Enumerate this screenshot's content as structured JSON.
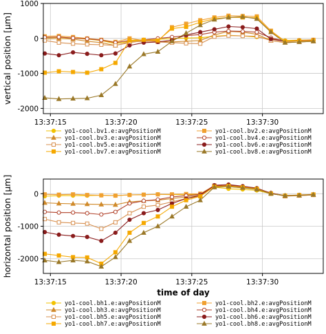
{
  "chart_data": [
    {
      "type": "line",
      "title": "",
      "xlabel": "",
      "ylabel": "vertical position [µm]",
      "x_tick_labels": [
        "13:37:15",
        "13:37:20",
        "13:37:25",
        "13:37:30"
      ],
      "x_tick_values": [
        15,
        20,
        25,
        30
      ],
      "xlim": [
        14.5,
        34.3
      ],
      "ylim": [
        -2150,
        1000
      ],
      "y_ticks": [
        1000,
        0,
        -1000,
        -2000
      ],
      "grid": true,
      "legend_position": "bottom",
      "x": [
        14.6,
        15.6,
        16.6,
        17.6,
        18.6,
        19.6,
        20.6,
        21.6,
        22.6,
        23.6,
        24.6,
        25.6,
        26.6,
        27.6,
        28.6,
        29.6,
        30.6,
        31.6,
        32.6,
        33.6
      ],
      "series": [
        {
          "name": "yo1-cool.bv1.e:avgPositionM",
          "color": "#f2c200",
          "marker": "circle-filled",
          "values": [
            20,
            30,
            10,
            -20,
            -60,
            -150,
            -80,
            -60,
            -30,
            0,
            10,
            20,
            60,
            90,
            70,
            40,
            -20,
            -60,
            -50,
            -40
          ]
        },
        {
          "name": "yo1-cool.bv2.e:avgPositionM",
          "color": "#f0a030",
          "marker": "square-filled",
          "values": [
            60,
            70,
            40,
            0,
            -40,
            -100,
            0,
            -60,
            -80,
            320,
            420,
            520,
            600,
            650,
            640,
            630,
            220,
            -80,
            -60,
            -40
          ]
        },
        {
          "name": "yo1-cool.bv3.e:avgPositionM",
          "color": "#d08a2a",
          "marker": "triangle-filled",
          "values": [
            -20,
            0,
            -20,
            -80,
            -120,
            -200,
            -100,
            -80,
            -80,
            -100,
            -80,
            -60,
            100,
            200,
            180,
            120,
            -60,
            -120,
            -100,
            -80
          ]
        },
        {
          "name": "yo1-cool.bv4.e:avgPositionM",
          "color": "#b04028",
          "marker": "circle-open",
          "values": [
            30,
            40,
            10,
            -10,
            -50,
            -120,
            -60,
            -40,
            0,
            40,
            80,
            110,
            180,
            210,
            200,
            180,
            20,
            -80,
            -60,
            -50
          ]
        },
        {
          "name": "yo1-cool.bv5.e:avgPositionM",
          "color": "#d89050",
          "marker": "square-open",
          "values": [
            -60,
            -120,
            -150,
            -170,
            -180,
            -200,
            -120,
            -60,
            -100,
            -120,
            -140,
            -150,
            50,
            80,
            70,
            60,
            -60,
            -110,
            -100,
            -80
          ]
        },
        {
          "name": "yo1-cool.bv6.e:avgPositionM",
          "color": "#8a1c1c",
          "marker": "circle-filled",
          "values": [
            -430,
            -480,
            -400,
            -440,
            -480,
            -430,
            -200,
            -120,
            -100,
            -50,
            100,
            180,
            260,
            340,
            320,
            280,
            -20,
            -80,
            -70,
            -60
          ]
        },
        {
          "name": "yo1-cool.bv7.e:avgPositionM",
          "color": "#f5a800",
          "marker": "square-filled",
          "values": [
            -980,
            -940,
            -960,
            -980,
            -880,
            -700,
            -60,
            -40,
            -60,
            280,
            330,
            460,
            560,
            600,
            600,
            590,
            190,
            -80,
            -70,
            -60
          ]
        },
        {
          "name": "yo1-cool.bv8.e:avgPositionM",
          "color": "#9a7828",
          "marker": "triangle-filled",
          "values": [
            -1700,
            -1730,
            -1720,
            -1710,
            -1620,
            -1300,
            -800,
            -450,
            -380,
            -80,
            150,
            380,
            540,
            600,
            620,
            560,
            180,
            -120,
            -100,
            -80
          ]
        }
      ]
    },
    {
      "type": "line",
      "title": "",
      "xlabel": "time of day",
      "ylabel": "horizontal position [µm]",
      "x_tick_labels": [
        "13:37:15",
        "13:37:20",
        "13:37:25",
        "13:37:30"
      ],
      "x_tick_values": [
        15,
        20,
        25,
        30
      ],
      "xlim": [
        14.5,
        34.3
      ],
      "ylim": [
        -2450,
        450
      ],
      "y_ticks": [
        0,
        -1000,
        -2000
      ],
      "grid": true,
      "legend_position": "bottom",
      "x": [
        14.6,
        15.6,
        16.6,
        17.6,
        18.6,
        19.6,
        20.6,
        21.6,
        22.6,
        23.6,
        24.6,
        25.6,
        26.6,
        27.6,
        28.6,
        29.6,
        30.6,
        31.6,
        32.6,
        33.6
      ],
      "series": [
        {
          "name": "yo1-cool.bh1.e:avgPositionM",
          "color": "#f2c200",
          "marker": "circle-filled",
          "values": [
            -80,
            -60,
            -60,
            -60,
            -50,
            -60,
            -40,
            -30,
            -20,
            -30,
            -30,
            -20,
            200,
            150,
            130,
            100,
            0,
            -60,
            -50,
            -30
          ]
        },
        {
          "name": "yo1-cool.bh2.e:avgPositionM",
          "color": "#f0a030",
          "marker": "square-filled",
          "values": [
            -20,
            -30,
            -20,
            -40,
            -50,
            -60,
            -40,
            -30,
            -20,
            -20,
            -10,
            0,
            250,
            220,
            180,
            150,
            0,
            -60,
            -40,
            -20
          ]
        },
        {
          "name": "yo1-cool.bh3.e:avgPositionM",
          "color": "#d08a2a",
          "marker": "triangle-filled",
          "values": [
            -280,
            -300,
            -310,
            -320,
            -330,
            -340,
            -250,
            -220,
            -200,
            -150,
            -100,
            -50,
            200,
            230,
            200,
            150,
            20,
            -80,
            -60,
            -40
          ]
        },
        {
          "name": "yo1-cool.bh4.e:avgPositionM",
          "color": "#b04028",
          "marker": "circle-open",
          "values": [
            -560,
            -580,
            -580,
            -600,
            -640,
            -560,
            -300,
            -220,
            -180,
            -100,
            -60,
            -20,
            240,
            260,
            220,
            160,
            20,
            -60,
            -50,
            -30
          ]
        },
        {
          "name": "yo1-cool.bh5.e:avgPositionM",
          "color": "#d89050",
          "marker": "square-open",
          "values": [
            -780,
            -880,
            -900,
            -920,
            -1080,
            -880,
            -600,
            -400,
            -350,
            -250,
            -150,
            -80,
            220,
            240,
            200,
            140,
            10,
            -70,
            -60,
            -40
          ]
        },
        {
          "name": "yo1-cool.bh6.e:avgPositionM",
          "color": "#8a1c1c",
          "marker": "circle-filled",
          "values": [
            -1180,
            -1260,
            -1300,
            -1330,
            -1450,
            -1200,
            -800,
            -600,
            -500,
            -300,
            -150,
            -50,
            260,
            280,
            230,
            170,
            10,
            -60,
            -50,
            -30
          ]
        },
        {
          "name": "yo1-cool.bh7.e:avgPositionM",
          "color": "#f5a800",
          "marker": "square-filled",
          "values": [
            -1850,
            -1900,
            -1950,
            -1960,
            -2150,
            -1800,
            -1200,
            -900,
            -700,
            -400,
            -200,
            -80,
            220,
            240,
            200,
            150,
            0,
            -60,
            -50,
            -30
          ]
        },
        {
          "name": "yo1-cool.bh8.e:avgPositionM",
          "color": "#9a7828",
          "marker": "triangle-filled",
          "values": [
            -2050,
            -2100,
            -2050,
            -2080,
            -2240,
            -1950,
            -1450,
            -1200,
            -1000,
            -700,
            -400,
            -200,
            200,
            220,
            180,
            130,
            0,
            -60,
            -50,
            -30
          ]
        }
      ]
    }
  ]
}
